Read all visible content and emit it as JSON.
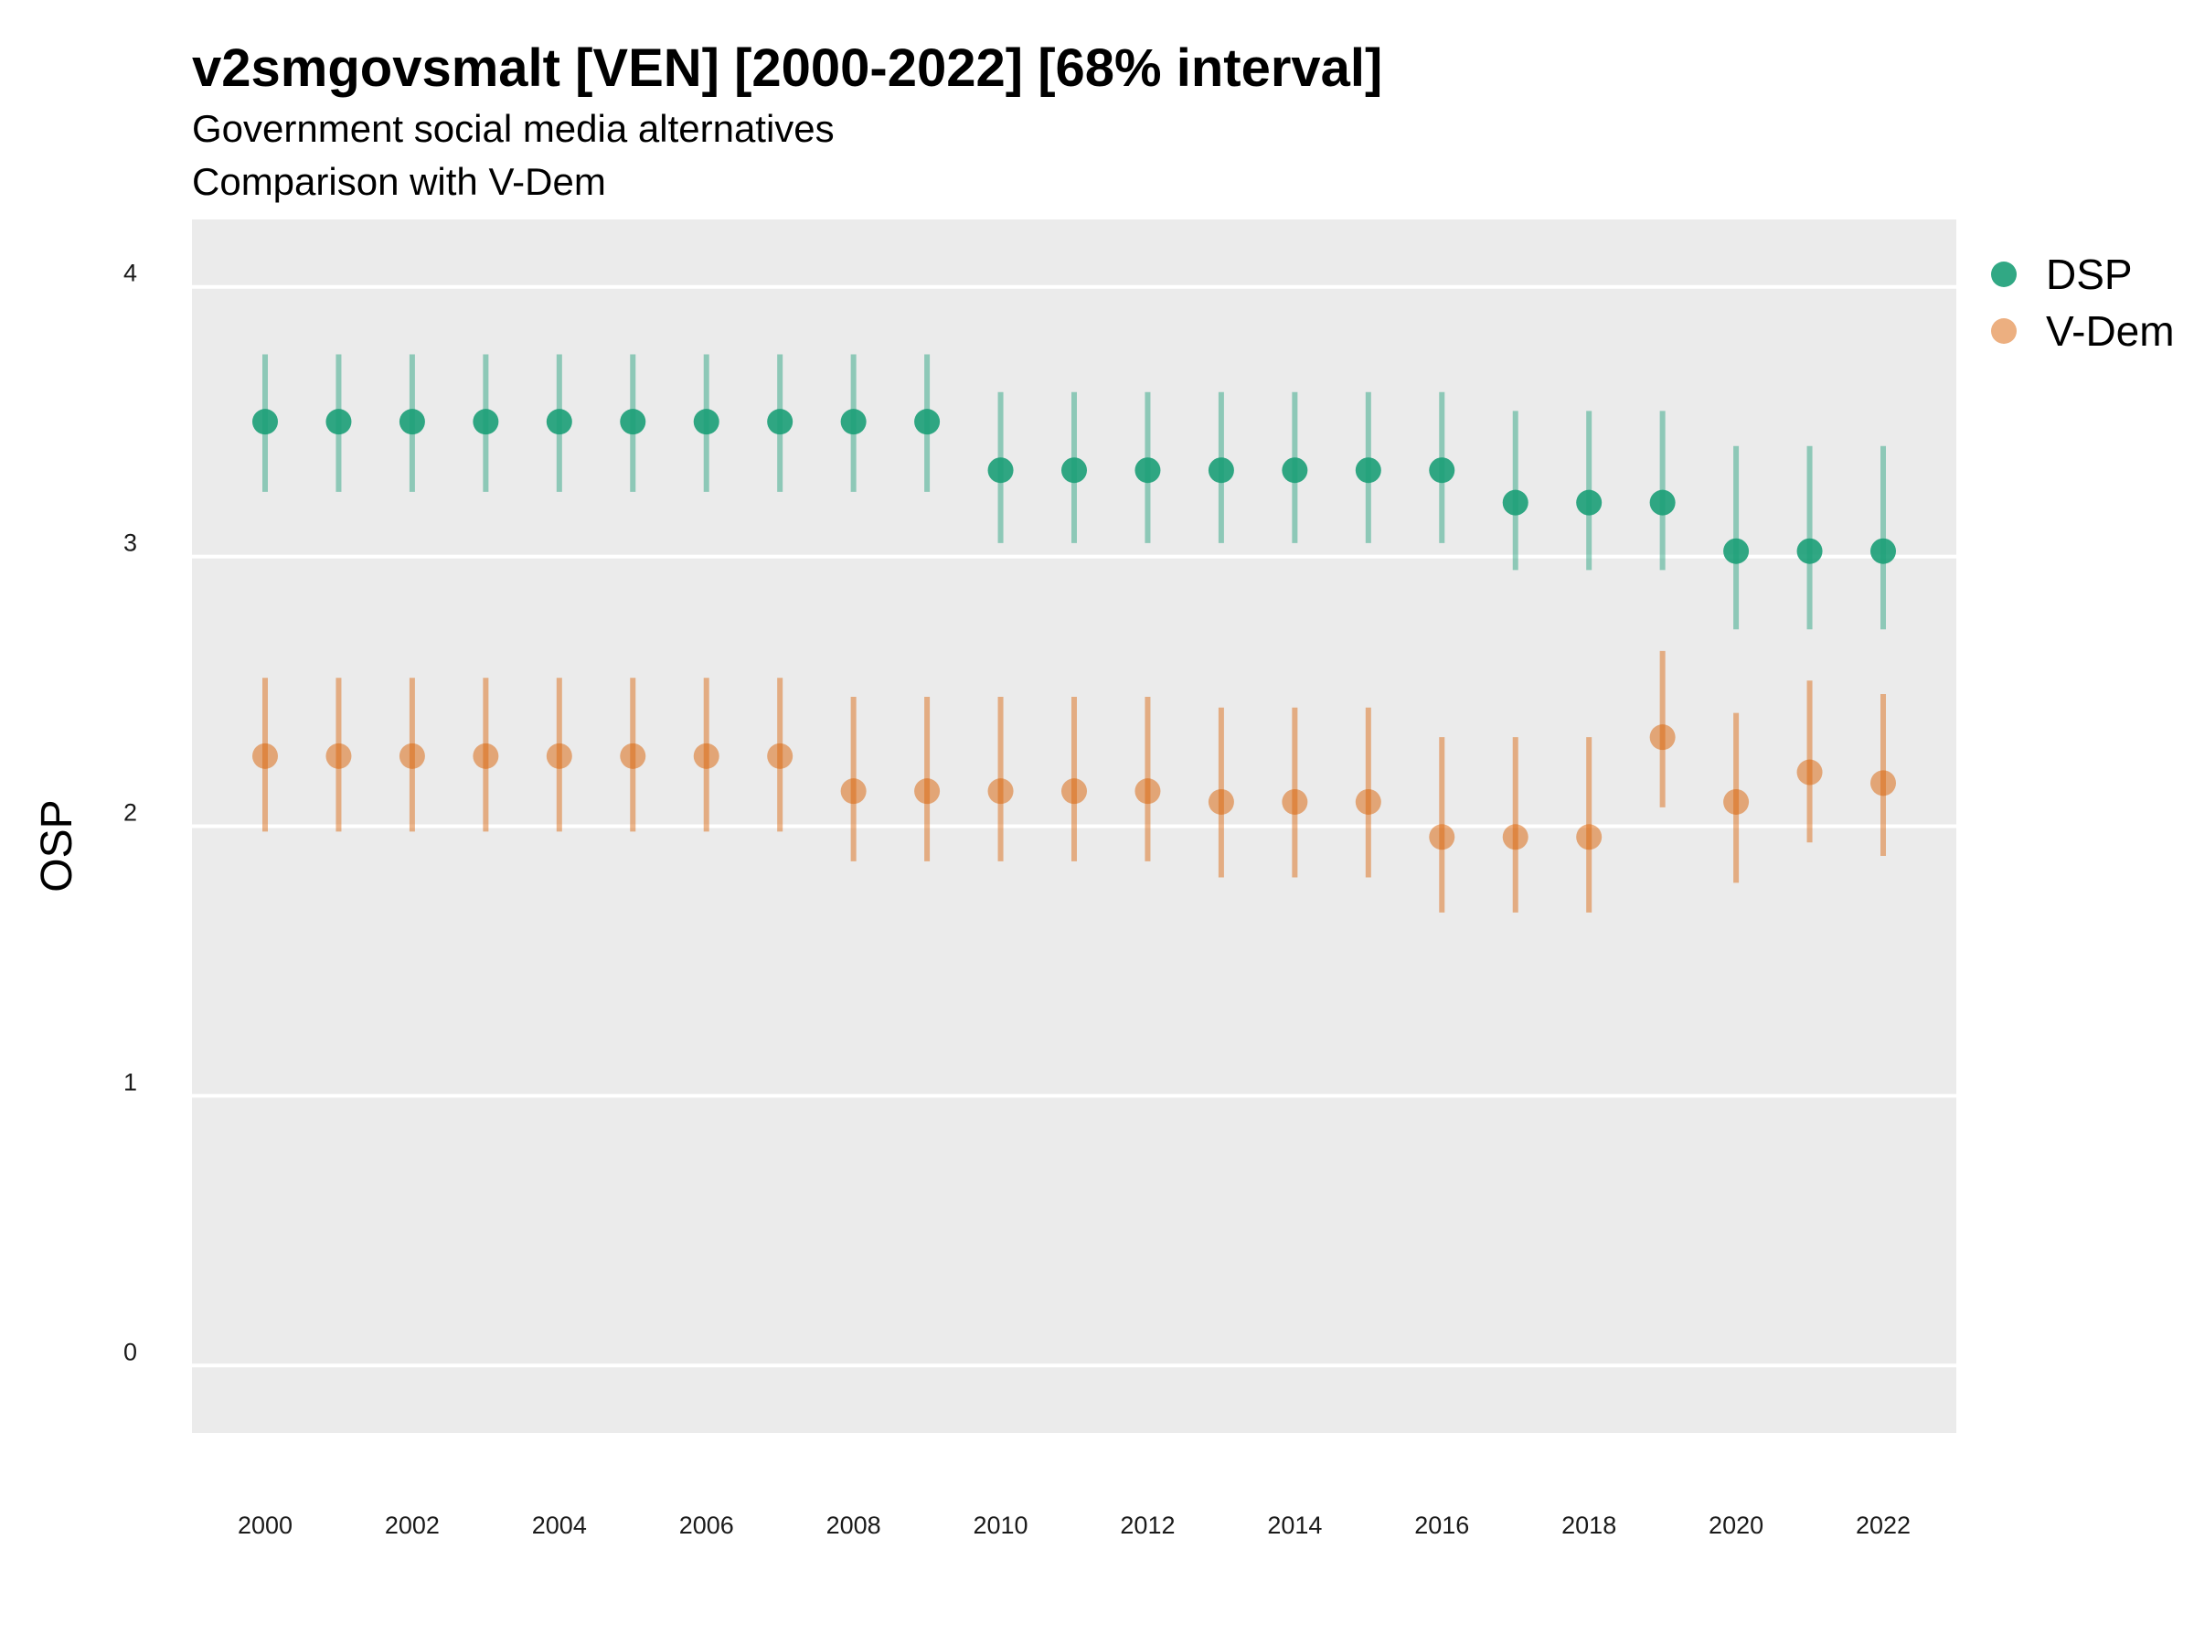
{
  "chart_data": {
    "type": "scatter",
    "title": "v2smgovsmalt [VEN] [2000-2022] [68% interval]",
    "subtitle_lines": [
      "Government social media alternatives",
      "Comparison with V-Dem"
    ],
    "xlabel": "",
    "ylabel": "OSP",
    "x": [
      2000,
      2001,
      2002,
      2003,
      2004,
      2005,
      2006,
      2007,
      2008,
      2009,
      2010,
      2011,
      2012,
      2013,
      2014,
      2015,
      2016,
      2017,
      2018,
      2019,
      2020,
      2021,
      2022
    ],
    "x_tick_labels": [
      "2000",
      "2002",
      "2004",
      "2006",
      "2008",
      "2010",
      "2012",
      "2014",
      "2016",
      "2018",
      "2020",
      "2022"
    ],
    "y_ticks": [
      0,
      1,
      2,
      3,
      4
    ],
    "ylim": [
      -0.25,
      4.25
    ],
    "grid": true,
    "legend_position": "right",
    "series": [
      {
        "name": "DSP",
        "color": "#1b9e77",
        "values": [
          3.5,
          3.5,
          3.5,
          3.5,
          3.5,
          3.5,
          3.5,
          3.5,
          3.5,
          3.5,
          3.32,
          3.32,
          3.32,
          3.32,
          3.32,
          3.32,
          3.32,
          3.2,
          3.2,
          3.2,
          3.02,
          3.02,
          3.02
        ],
        "lower": [
          3.24,
          3.24,
          3.24,
          3.24,
          3.24,
          3.24,
          3.24,
          3.24,
          3.24,
          3.24,
          3.05,
          3.05,
          3.05,
          3.05,
          3.05,
          3.05,
          3.05,
          2.95,
          2.95,
          2.95,
          2.73,
          2.73,
          2.73
        ],
        "upper": [
          3.75,
          3.75,
          3.75,
          3.75,
          3.75,
          3.75,
          3.75,
          3.75,
          3.75,
          3.75,
          3.61,
          3.61,
          3.61,
          3.61,
          3.61,
          3.61,
          3.61,
          3.54,
          3.54,
          3.54,
          3.41,
          3.41,
          3.41
        ]
      },
      {
        "name": "V-Dem",
        "color": "#d95f02",
        "values": [
          2.26,
          2.26,
          2.26,
          2.26,
          2.26,
          2.26,
          2.26,
          2.26,
          2.13,
          2.13,
          2.13,
          2.13,
          2.13,
          2.09,
          2.09,
          2.09,
          1.96,
          1.96,
          1.96,
          2.33,
          2.09,
          2.2,
          2.16
        ],
        "lower": [
          1.98,
          1.98,
          1.98,
          1.98,
          1.98,
          1.98,
          1.98,
          1.98,
          1.87,
          1.87,
          1.87,
          1.87,
          1.87,
          1.81,
          1.81,
          1.81,
          1.68,
          1.68,
          1.68,
          2.07,
          1.79,
          1.94,
          1.89
        ],
        "upper": [
          2.55,
          2.55,
          2.55,
          2.55,
          2.55,
          2.55,
          2.55,
          2.55,
          2.48,
          2.48,
          2.48,
          2.48,
          2.48,
          2.44,
          2.44,
          2.44,
          2.33,
          2.33,
          2.33,
          2.65,
          2.42,
          2.54,
          2.49
        ]
      }
    ]
  }
}
